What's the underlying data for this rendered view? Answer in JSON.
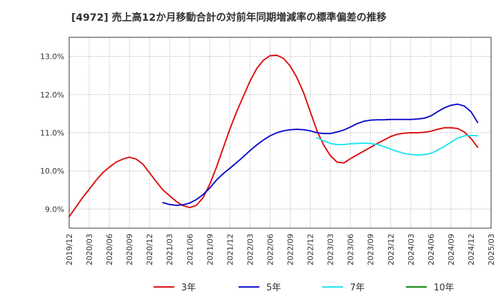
{
  "chart_data": {
    "type": "line",
    "title": "[4972]  売上高12か月移動合計の対前年同期増減率の標準偏差の推移",
    "xlabel": "",
    "ylabel": "",
    "ylim": [
      8.5,
      13.5
    ],
    "grid": true,
    "legend_position": "bottom",
    "y_ticks": [
      "9.0%",
      "10.0%",
      "11.0%",
      "12.0%",
      "13.0%"
    ],
    "y_tick_values": [
      9.0,
      10.0,
      11.0,
      12.0,
      13.0
    ],
    "x_tick_labels": [
      "2019/12",
      "2020/03",
      "2020/06",
      "2020/09",
      "2020/12",
      "2021/03",
      "2021/06",
      "2021/09",
      "2021/12",
      "2022/03",
      "2022/06",
      "2022/09",
      "2022/12",
      "2023/03",
      "2023/06",
      "2023/09",
      "2023/12",
      "2024/03",
      "2024/06",
      "2024/09",
      "2024/12",
      "2025/03"
    ],
    "x_start": "2019/12",
    "x_end": "2025/03",
    "series": [
      {
        "name": "3年",
        "color": "#dd1111",
        "points": [
          [
            "2019/12",
            8.8
          ],
          [
            "2020/01",
            9.05
          ],
          [
            "2020/02",
            9.3
          ],
          [
            "2020/03",
            9.52
          ],
          [
            "2020/04",
            9.75
          ],
          [
            "2020/05",
            9.95
          ],
          [
            "2020/06",
            10.1
          ],
          [
            "2020/07",
            10.23
          ],
          [
            "2020/08",
            10.31
          ],
          [
            "2020/09",
            10.36
          ],
          [
            "2020/10",
            10.31
          ],
          [
            "2020/11",
            10.18
          ],
          [
            "2020/12",
            9.95
          ],
          [
            "2021/01",
            9.72
          ],
          [
            "2021/02",
            9.5
          ],
          [
            "2021/03",
            9.35
          ],
          [
            "2021/04",
            9.2
          ],
          [
            "2021/05",
            9.09
          ],
          [
            "2021/06",
            9.04
          ],
          [
            "2021/07",
            9.1
          ],
          [
            "2021/08",
            9.3
          ],
          [
            "2021/09",
            9.65
          ],
          [
            "2021/10",
            10.1
          ],
          [
            "2021/11",
            10.6
          ],
          [
            "2021/12",
            11.1
          ],
          [
            "2022/01",
            11.55
          ],
          [
            "2022/02",
            11.95
          ],
          [
            "2022/03",
            12.35
          ],
          [
            "2022/04",
            12.68
          ],
          [
            "2022/05",
            12.9
          ],
          [
            "2022/06",
            13.02
          ],
          [
            "2022/07",
            13.03
          ],
          [
            "2022/08",
            12.95
          ],
          [
            "2022/09",
            12.75
          ],
          [
            "2022/10",
            12.45
          ],
          [
            "2022/11",
            12.05
          ],
          [
            "2022/12",
            11.55
          ],
          [
            "2023/01",
            11.05
          ],
          [
            "2023/02",
            10.68
          ],
          [
            "2023/03",
            10.4
          ],
          [
            "2023/04",
            10.23
          ],
          [
            "2023/05",
            10.21
          ],
          [
            "2023/06",
            10.32
          ],
          [
            "2023/07",
            10.42
          ],
          [
            "2023/08",
            10.52
          ],
          [
            "2023/09",
            10.62
          ],
          [
            "2023/10",
            10.72
          ],
          [
            "2023/11",
            10.81
          ],
          [
            "2023/12",
            10.9
          ],
          [
            "2024/01",
            10.96
          ],
          [
            "2024/02",
            10.99
          ],
          [
            "2024/03",
            11.0
          ],
          [
            "2024/04",
            11.0
          ],
          [
            "2024/05",
            11.01
          ],
          [
            "2024/06",
            11.04
          ],
          [
            "2024/07",
            11.09
          ],
          [
            "2024/08",
            11.13
          ],
          [
            "2024/09",
            11.13
          ],
          [
            "2024/10",
            11.11
          ],
          [
            "2024/11",
            11.02
          ],
          [
            "2024/12",
            10.85
          ],
          [
            "2025/01",
            10.62
          ]
        ]
      },
      {
        "name": "5年",
        "color": "#1111cc",
        "points": [
          [
            "2021/02",
            9.17
          ],
          [
            "2021/03",
            9.12
          ],
          [
            "2021/04",
            9.1
          ],
          [
            "2021/05",
            9.11
          ],
          [
            "2021/06",
            9.16
          ],
          [
            "2021/07",
            9.25
          ],
          [
            "2021/08",
            9.38
          ],
          [
            "2021/09",
            9.55
          ],
          [
            "2021/10",
            9.76
          ],
          [
            "2021/11",
            9.93
          ],
          [
            "2021/12",
            10.07
          ],
          [
            "2022/01",
            10.22
          ],
          [
            "2022/02",
            10.37
          ],
          [
            "2022/03",
            10.53
          ],
          [
            "2022/04",
            10.68
          ],
          [
            "2022/05",
            10.81
          ],
          [
            "2022/06",
            10.92
          ],
          [
            "2022/07",
            11.0
          ],
          [
            "2022/08",
            11.05
          ],
          [
            "2022/09",
            11.08
          ],
          [
            "2022/10",
            11.09
          ],
          [
            "2022/11",
            11.08
          ],
          [
            "2022/12",
            11.05
          ],
          [
            "2023/01",
            11.0
          ],
          [
            "2023/02",
            10.98
          ],
          [
            "2023/03",
            10.98
          ],
          [
            "2023/04",
            11.02
          ],
          [
            "2023/05",
            11.07
          ],
          [
            "2023/06",
            11.15
          ],
          [
            "2023/07",
            11.24
          ],
          [
            "2023/08",
            11.3
          ],
          [
            "2023/09",
            11.33
          ],
          [
            "2023/10",
            11.34
          ],
          [
            "2023/11",
            11.34
          ],
          [
            "2023/12",
            11.35
          ],
          [
            "2024/01",
            11.35
          ],
          [
            "2024/02",
            11.35
          ],
          [
            "2024/03",
            11.35
          ],
          [
            "2024/04",
            11.36
          ],
          [
            "2024/05",
            11.38
          ],
          [
            "2024/06",
            11.44
          ],
          [
            "2024/07",
            11.55
          ],
          [
            "2024/08",
            11.65
          ],
          [
            "2024/09",
            11.72
          ],
          [
            "2024/10",
            11.75
          ],
          [
            "2024/11",
            11.7
          ],
          [
            "2024/12",
            11.55
          ],
          [
            "2025/01",
            11.27
          ]
        ]
      },
      {
        "name": "7年",
        "color": "#22e5ee",
        "points": [
          [
            "2023/01",
            10.87
          ],
          [
            "2023/02",
            10.79
          ],
          [
            "2023/03",
            10.72
          ],
          [
            "2023/04",
            10.69
          ],
          [
            "2023/05",
            10.69
          ],
          [
            "2023/06",
            10.71
          ],
          [
            "2023/07",
            10.72
          ],
          [
            "2023/08",
            10.73
          ],
          [
            "2023/09",
            10.72
          ],
          [
            "2023/10",
            10.69
          ],
          [
            "2023/11",
            10.64
          ],
          [
            "2023/12",
            10.57
          ],
          [
            "2024/01",
            10.51
          ],
          [
            "2024/02",
            10.46
          ],
          [
            "2024/03",
            10.43
          ],
          [
            "2024/04",
            10.42
          ],
          [
            "2024/05",
            10.43
          ],
          [
            "2024/06",
            10.46
          ],
          [
            "2024/07",
            10.54
          ],
          [
            "2024/08",
            10.64
          ],
          [
            "2024/09",
            10.75
          ],
          [
            "2024/10",
            10.86
          ],
          [
            "2024/11",
            10.92
          ],
          [
            "2024/12",
            10.93
          ],
          [
            "2025/01",
            10.92
          ]
        ]
      },
      {
        "name": "10年",
        "color": "#118811",
        "points": []
      }
    ]
  }
}
